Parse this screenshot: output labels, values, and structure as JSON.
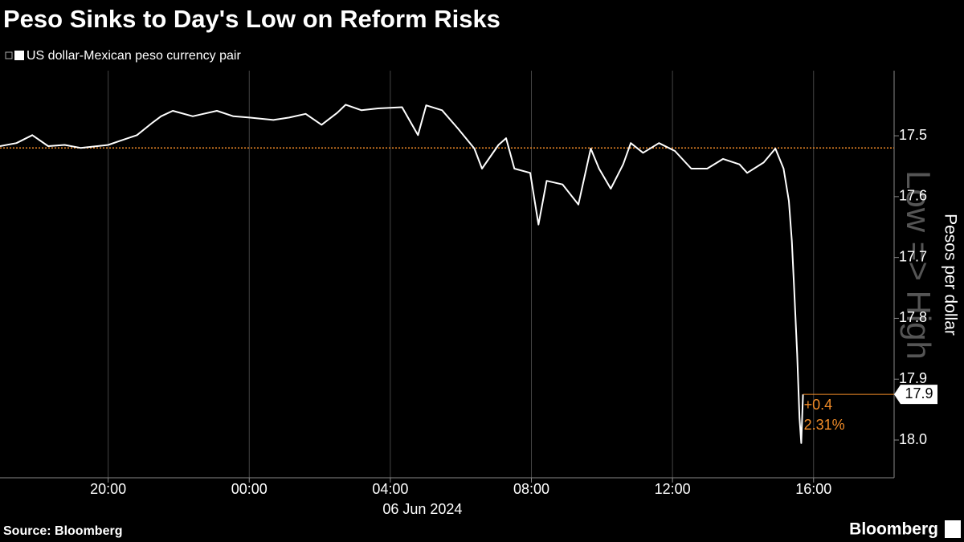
{
  "chart_data": {
    "type": "line",
    "title": "Peso Sinks to Day's Low on Reform Risks",
    "y_label": "Pesos per dollar",
    "y_direction_label": "Low => High",
    "source": "Source: Bloomberg",
    "brand": "Bloomberg",
    "x_date_label": "06 Jun 2024",
    "y_reversed": true,
    "grid": true,
    "reference_line": 17.52,
    "reference_color": "#f28c28",
    "current_value_label": "17.9",
    "change_labels": [
      "+0.4",
      "2.31%"
    ],
    "xlim": [
      "2024-06-05T16:56",
      "2024-06-06T18:17"
    ],
    "xticks": [
      {
        "value": "2024-06-05T20:00",
        "label": "20:00"
      },
      {
        "value": "2024-06-06T00:00",
        "label": "00:00"
      },
      {
        "value": "2024-06-06T04:00",
        "label": "04:00"
      },
      {
        "value": "2024-06-06T08:00",
        "label": "08:00"
      },
      {
        "value": "2024-06-06T12:00",
        "label": "12:00"
      },
      {
        "value": "2024-06-06T16:00",
        "label": "16:00"
      }
    ],
    "ylim": [
      17.393,
      18.062
    ],
    "yticks": [
      17.5,
      17.6,
      17.7,
      17.8,
      17.9,
      {
        "value": 18,
        "label": "18.0"
      }
    ],
    "x": [
      "2024-06-05T16:56",
      "2024-06-05T17:24",
      "2024-06-05T17:51",
      "2024-06-05T18:18",
      "2024-06-05T18:46",
      "2024-06-05T19:13",
      "2024-06-05T20:00",
      "2024-06-05T20:21",
      "2024-06-05T20:49",
      "2024-06-05T21:16",
      "2024-06-05T21:30",
      "2024-06-05T21:50",
      "2024-06-05T22:24",
      "2024-06-05T23:05",
      "2024-06-05T23:33",
      "2024-06-06T00:00",
      "2024-06-06T00:41",
      "2024-06-06T01:08",
      "2024-06-06T01:36",
      "2024-06-06T02:03",
      "2024-06-06T02:30",
      "2024-06-06T02:44",
      "2024-06-06T03:11",
      "2024-06-06T03:39",
      "2024-06-06T04:20",
      "2024-06-06T04:47",
      "2024-06-06T05:01",
      "2024-06-06T05:28",
      "2024-06-06T05:55",
      "2024-06-06T06:23",
      "2024-06-06T06:36",
      "2024-06-06T07:04",
      "2024-06-06T07:17",
      "2024-06-06T07:31",
      "2024-06-06T07:58",
      "2024-06-06T08:12",
      "2024-06-06T08:26",
      "2024-06-06T08:53",
      "2024-06-06T09:20",
      "2024-06-06T09:41",
      "2024-06-06T09:55",
      "2024-06-06T10:15",
      "2024-06-06T10:36",
      "2024-06-06T10:49",
      "2024-06-06T11:10",
      "2024-06-06T11:37",
      "2024-06-06T12:04",
      "2024-06-06T12:32",
      "2024-06-06T12:59",
      "2024-06-06T13:26",
      "2024-06-06T13:54",
      "2024-06-06T14:07",
      "2024-06-06T14:35",
      "2024-06-06T14:55",
      "2024-06-06T15:09",
      "2024-06-06T15:18",
      "2024-06-06T15:23",
      "2024-06-06T15:27",
      "2024-06-06T15:32",
      "2024-06-06T15:36",
      "2024-06-06T15:39",
      "2024-06-06T15:42"
    ],
    "series": [
      {
        "name": "US dollar-Mexican peso currency pair",
        "color": "#ffffff",
        "values": [
          17.517,
          17.512,
          17.499,
          17.517,
          17.515,
          17.52,
          17.515,
          17.508,
          17.499,
          17.478,
          17.468,
          17.459,
          17.468,
          17.459,
          17.468,
          17.47,
          17.474,
          17.47,
          17.464,
          17.482,
          17.462,
          17.449,
          17.458,
          17.455,
          17.453,
          17.499,
          17.45,
          17.458,
          17.488,
          17.521,
          17.554,
          17.515,
          17.504,
          17.554,
          17.561,
          17.646,
          17.574,
          17.58,
          17.613,
          17.521,
          17.554,
          17.587,
          17.547,
          17.512,
          17.528,
          17.512,
          17.525,
          17.554,
          17.554,
          17.538,
          17.547,
          17.561,
          17.544,
          17.521,
          17.554,
          17.607,
          17.673,
          17.752,
          17.858,
          17.963,
          18.005,
          17.925
        ]
      }
    ]
  }
}
